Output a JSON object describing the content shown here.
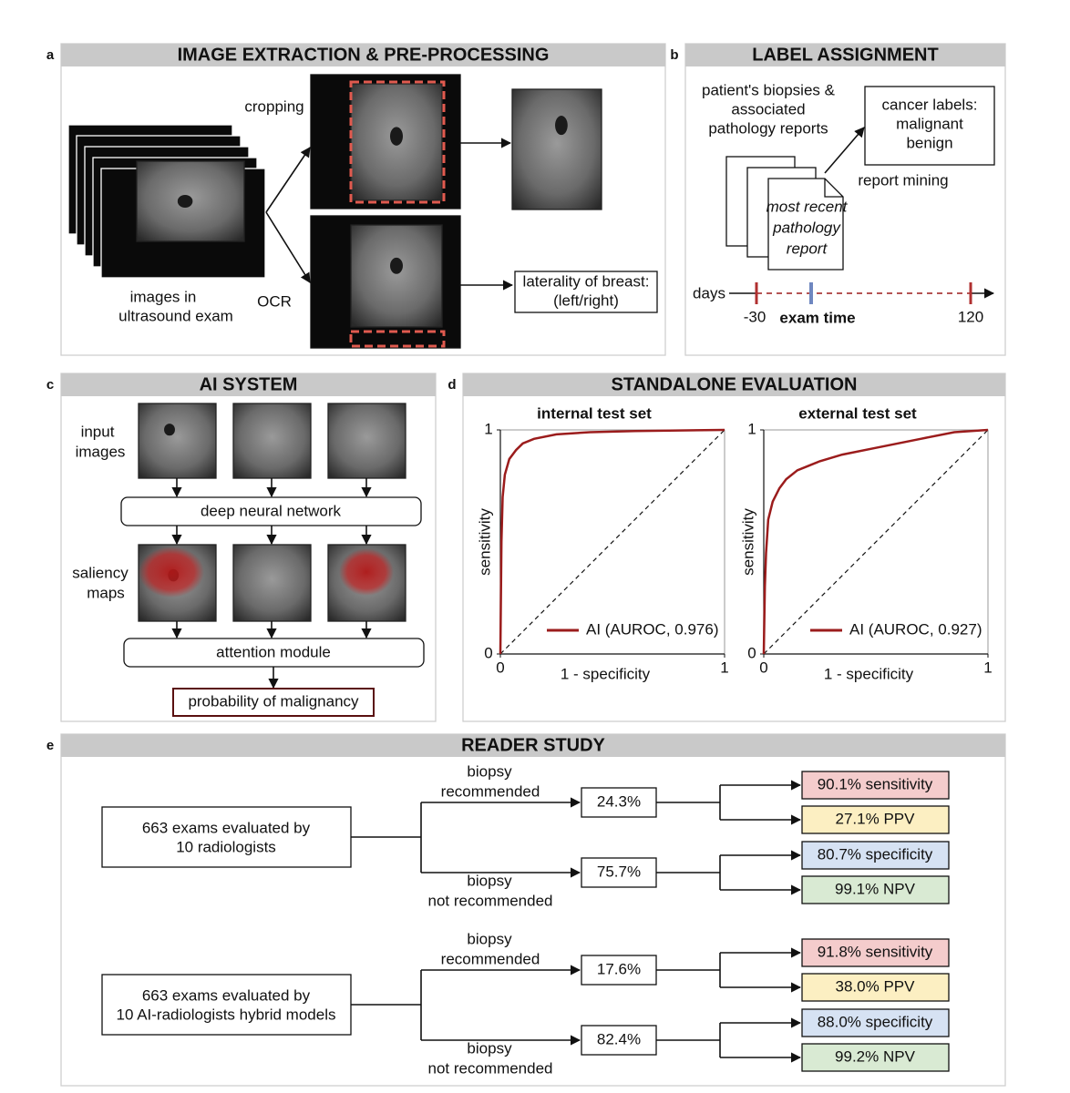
{
  "panels": {
    "a": {
      "letter": "a",
      "title": "IMAGE EXTRACTION & PRE-PROCESSING",
      "cropping": "cropping",
      "ocr": "OCR",
      "images_caption": [
        "images in",
        "ultrasound exam"
      ],
      "laterality": [
        "laterality of breast:",
        "(left/right)"
      ]
    },
    "b": {
      "letter": "b",
      "title": "LABEL ASSIGNMENT",
      "biopsies": [
        "patient's biopsies &",
        "associated",
        "pathology reports"
      ],
      "cancer_labels": [
        "cancer labels:",
        "malignant",
        "benign"
      ],
      "report_mining": "report mining",
      "document": [
        "most recent",
        "pathology",
        "report"
      ],
      "days": "days",
      "start": "-30",
      "exam_time": "exam time",
      "end": "120"
    },
    "c": {
      "letter": "c",
      "title": "AI SYSTEM",
      "input_images": [
        "input",
        "images"
      ],
      "network": "deep neural network",
      "saliency_maps": [
        "saliency",
        "maps"
      ],
      "attention": "attention module",
      "output": "probability of malignancy"
    },
    "d": {
      "letter": "d",
      "title": "STANDALONE EVALUATION"
    },
    "e": {
      "letter": "e",
      "title": "READER STUDY",
      "groups": [
        {
          "source": [
            "663 exams evaluated by",
            "10 radiologists"
          ],
          "branches": [
            {
              "label": [
                "biopsy",
                "recommended"
              ],
              "share": "24.3%",
              "outcomes": [
                "90.1% sensitivity",
                "27.1% PPV"
              ]
            },
            {
              "label": [
                "biopsy",
                "not recommended"
              ],
              "share": "75.7%",
              "outcomes": [
                "80.7% specificity",
                "99.1% NPV"
              ]
            }
          ]
        },
        {
          "source": [
            "663 exams evaluated by",
            "10 AI-radiologists hybrid models"
          ],
          "branches": [
            {
              "label": [
                "biopsy",
                "recommended"
              ],
              "share": "17.6%",
              "outcomes": [
                "91.8% sensitivity",
                "38.0% PPV"
              ]
            },
            {
              "label": [
                "biopsy",
                "not recommended"
              ],
              "share": "82.4%",
              "outcomes": [
                "88.0% specificity",
                "99.2% NPV"
              ]
            }
          ]
        }
      ]
    }
  },
  "chart_data": [
    {
      "type": "line",
      "title": "internal test set",
      "xlabel": "1 - specificity",
      "ylabel": "sensitivity",
      "x": [
        0,
        0.005,
        0.01,
        0.02,
        0.04,
        0.07,
        0.1,
        0.15,
        0.25,
        0.4,
        0.6,
        1
      ],
      "series": [
        {
          "name": "AI (AUROC, 0.976)",
          "color": "#9b1c1c",
          "values": [
            0,
            0.5,
            0.7,
            0.8,
            0.87,
            0.91,
            0.94,
            0.96,
            0.98,
            0.99,
            0.995,
            1
          ]
        }
      ],
      "xlim": [
        0,
        1
      ],
      "ylim": [
        0,
        1
      ],
      "xticks": [
        0,
        1
      ],
      "yticks": [
        0,
        1
      ]
    },
    {
      "type": "line",
      "title": "external test set",
      "xlabel": "1 - specificity",
      "ylabel": "sensitivity",
      "x": [
        0,
        0.005,
        0.01,
        0.02,
        0.04,
        0.07,
        0.1,
        0.15,
        0.25,
        0.35,
        0.5,
        0.7,
        0.85,
        1
      ],
      "series": [
        {
          "name": "AI (AUROC, 0.927)",
          "color": "#9b1c1c",
          "values": [
            0,
            0.3,
            0.45,
            0.6,
            0.68,
            0.74,
            0.78,
            0.82,
            0.86,
            0.89,
            0.92,
            0.96,
            0.99,
            1
          ]
        }
      ],
      "xlim": [
        0,
        1
      ],
      "ylim": [
        0,
        1
      ],
      "xticks": [
        0,
        1
      ],
      "yticks": [
        0,
        1
      ]
    }
  ]
}
